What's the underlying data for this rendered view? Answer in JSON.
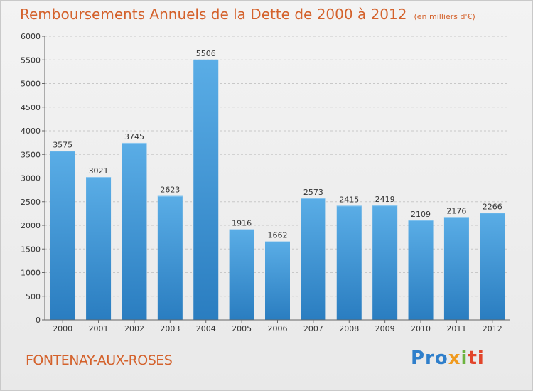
{
  "title": "Remboursements Annuels de la Dette de 2000 à 2012",
  "unit_note": "(en milliers d'€)",
  "commune": "FONTENAY-AUX-ROSES",
  "logo": {
    "text": "Proxiti",
    "parts": [
      "Pro",
      "x",
      "i",
      "ti"
    ]
  },
  "colors": {
    "accent": "#d4622c",
    "bar_top": "#5aade6",
    "bar_bottom": "#2a7dc0",
    "grid": "#c8c8c8"
  },
  "chart_data": {
    "type": "bar",
    "title": "Remboursements Annuels de la Dette de 2000 à 2012",
    "xlabel": "",
    "ylabel": "",
    "ylim": [
      0,
      6000
    ],
    "yticks": [
      0,
      500,
      1000,
      1500,
      2000,
      2500,
      3000,
      3500,
      4000,
      4500,
      5000,
      5500,
      6000
    ],
    "grid": "dashed-horizontal",
    "categories": [
      "2000",
      "2001",
      "2002",
      "2003",
      "2004",
      "2005",
      "2006",
      "2007",
      "2008",
      "2009",
      "2010",
      "2011",
      "2012"
    ],
    "values": [
      3575,
      3021,
      3745,
      2623,
      5506,
      1916,
      1662,
      2573,
      2415,
      2419,
      2109,
      2176,
      2266
    ]
  }
}
